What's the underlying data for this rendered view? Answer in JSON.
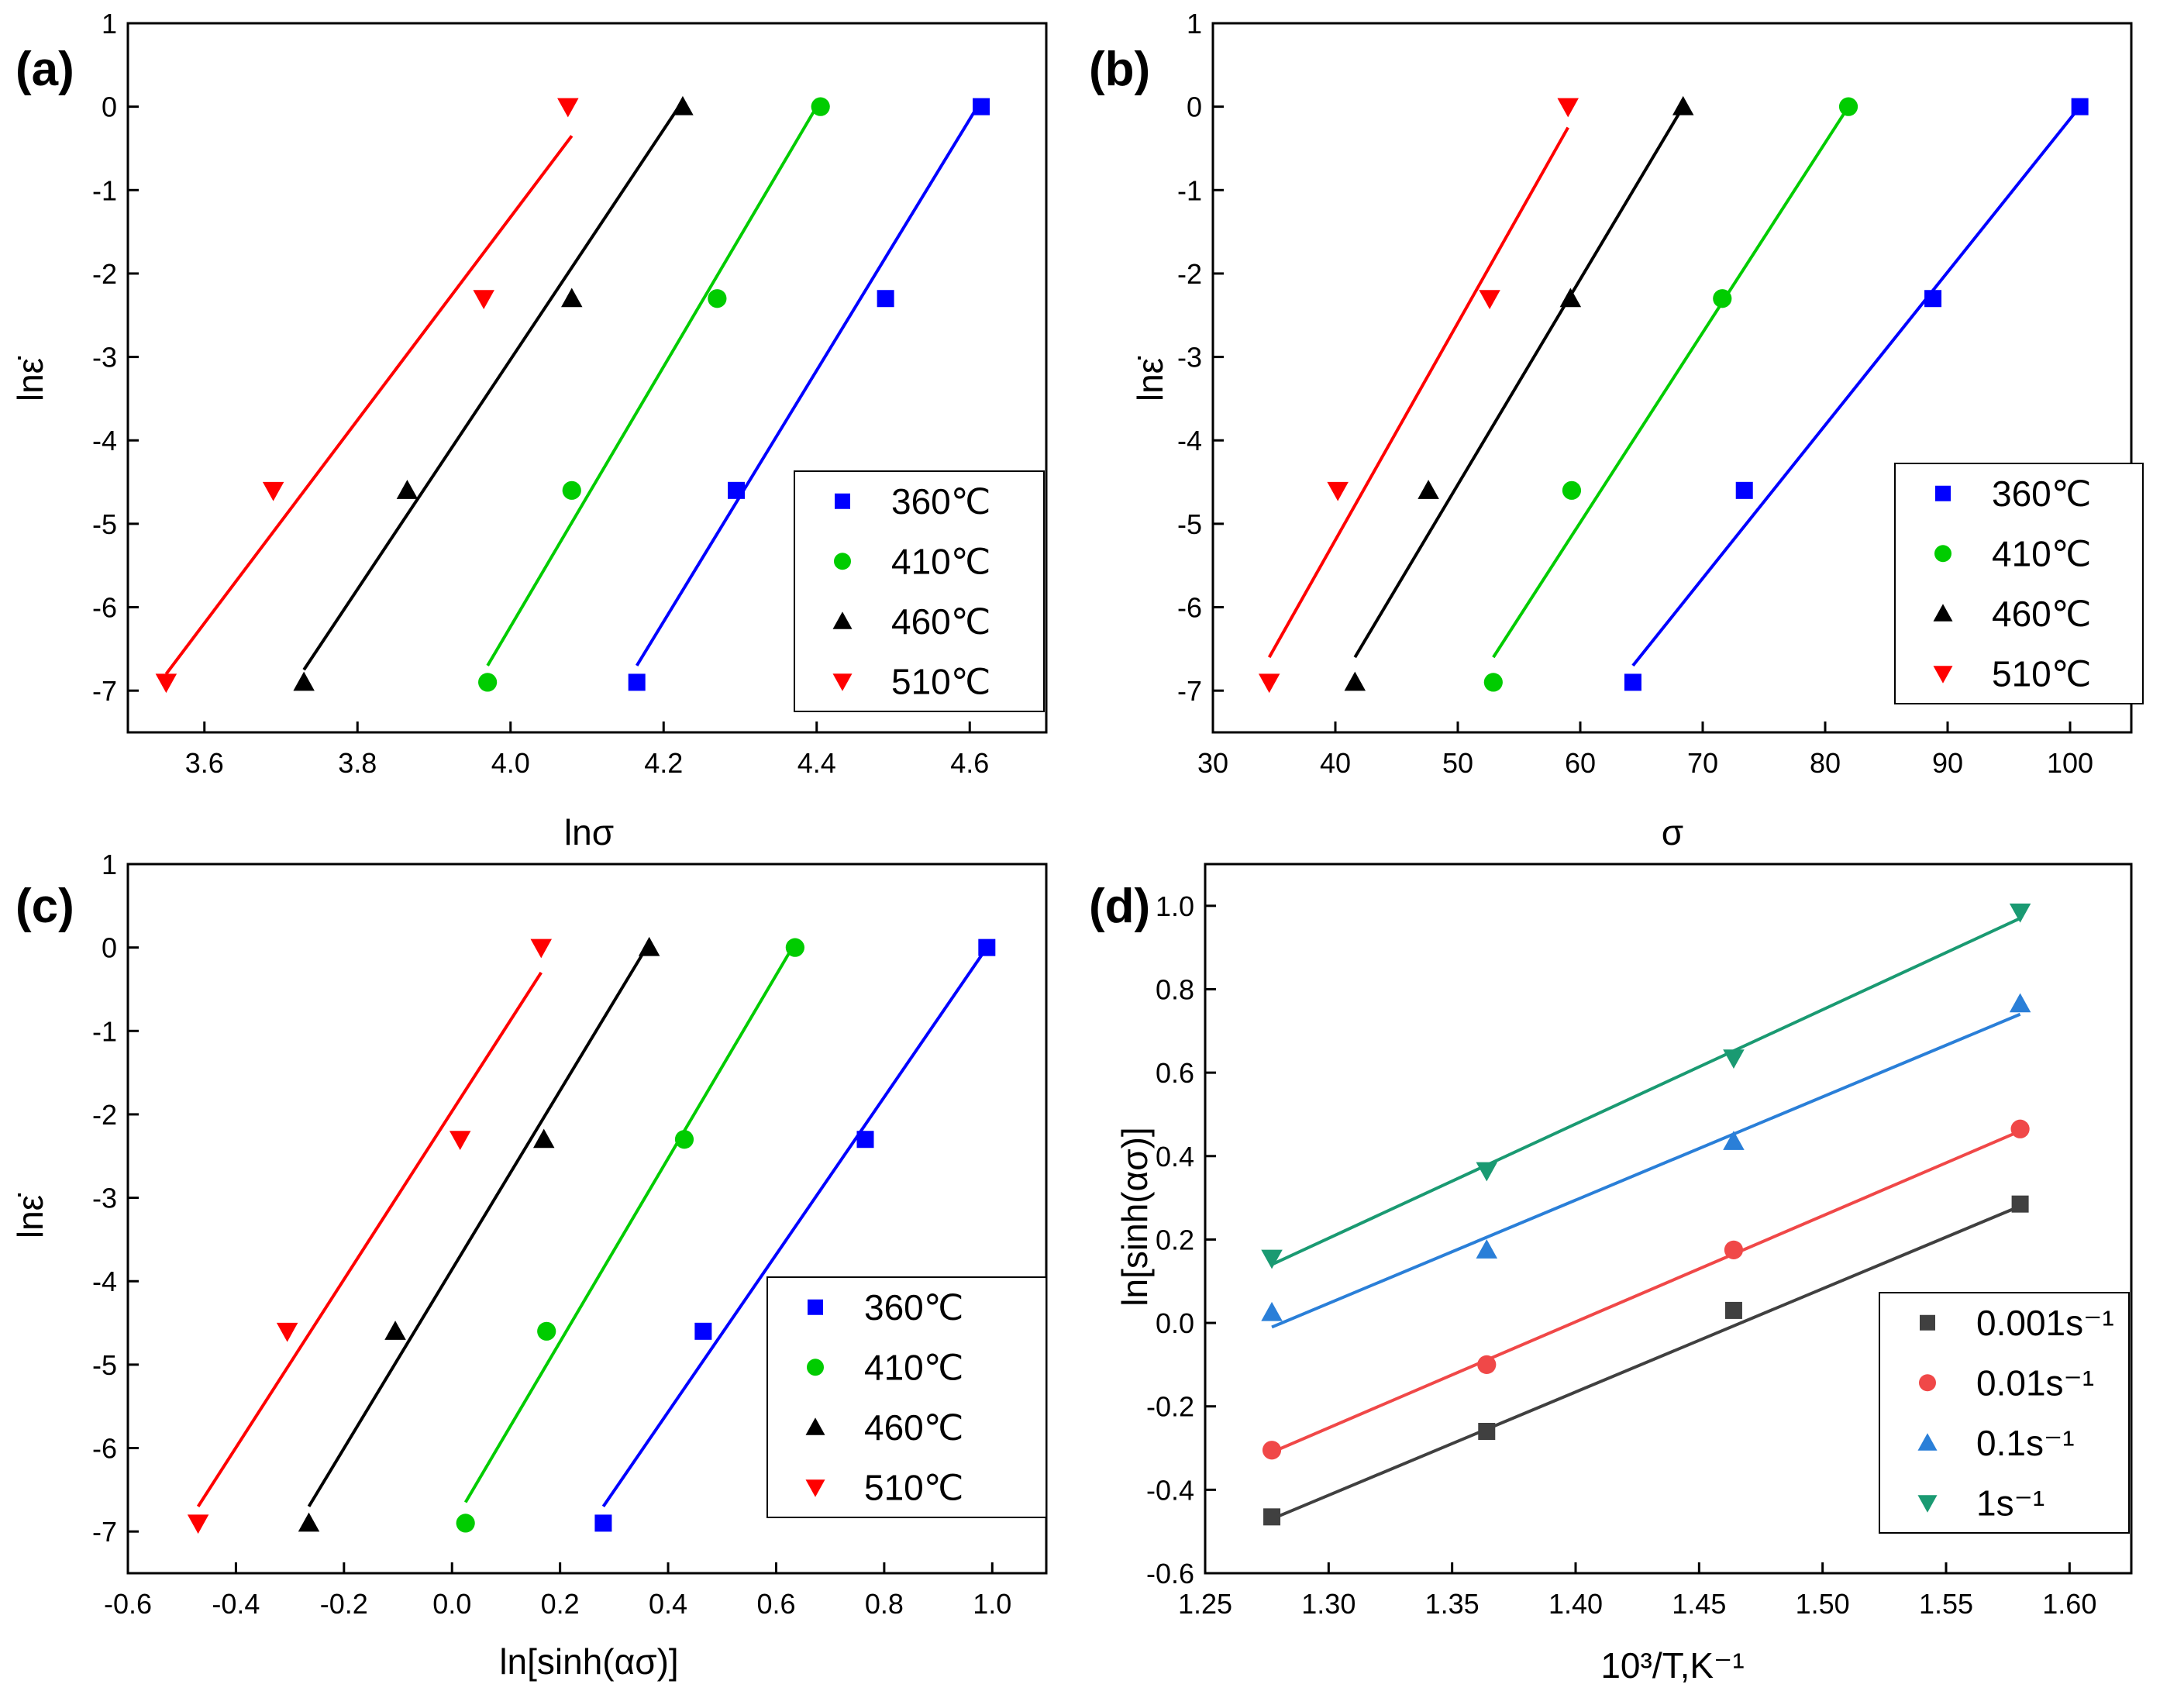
{
  "chart_data": [
    {
      "id": "a",
      "type": "scatter",
      "title": "(a)",
      "xlabel": "lnσ",
      "ylabel": "lnε̇",
      "xlim": [
        3.5,
        4.7
      ],
      "ylim": [
        -7.5,
        1
      ],
      "xticks": [
        3.6,
        3.8,
        4.0,
        4.2,
        4.4,
        4.6
      ],
      "xtick_labels": [
        "3.6",
        "3.8",
        "4.0",
        "4.2",
        "4.4",
        "4.6"
      ],
      "yticks": [
        -7,
        -6,
        -5,
        -4,
        -3,
        -2,
        -1,
        0,
        1
      ],
      "ytick_labels": [
        "-7",
        "-6",
        "-5",
        "-4",
        "-3",
        "-2",
        "-1",
        "0",
        "1"
      ],
      "legend_position": "bottom-right",
      "series": [
        {
          "name": "360℃",
          "color": "#0000ff",
          "marker": "square",
          "x": [
            4.615,
            4.49,
            4.295,
            4.165
          ],
          "y": [
            0,
            -2.3,
            -4.6,
            -6.9
          ],
          "fit_line": {
            "x": [
              4.165,
              4.61
            ],
            "y": [
              -6.7,
              0
            ]
          }
        },
        {
          "name": "410℃",
          "color": "#00cc00",
          "marker": "circle",
          "x": [
            4.405,
            4.27,
            4.08,
            3.97
          ],
          "y": [
            0,
            -2.3,
            -4.6,
            -6.9
          ],
          "fit_line": {
            "x": [
              3.97,
              4.4
            ],
            "y": [
              -6.7,
              0
            ]
          }
        },
        {
          "name": "460℃",
          "color": "#000000",
          "marker": "triangle-up",
          "x": [
            4.225,
            4.08,
            3.865,
            3.73
          ],
          "y": [
            0,
            -2.3,
            -4.6,
            -6.9
          ],
          "fit_line": {
            "x": [
              3.73,
              4.22
            ],
            "y": [
              -6.75,
              0
            ]
          }
        },
        {
          "name": "510℃",
          "color": "#ff0000",
          "marker": "triangle-down",
          "x": [
            4.075,
            3.965,
            3.69,
            3.55
          ],
          "y": [
            0,
            -2.3,
            -4.6,
            -6.9
          ],
          "fit_line": {
            "x": [
              3.55,
              4.08
            ],
            "y": [
              -6.8,
              -0.35
            ]
          }
        }
      ]
    },
    {
      "id": "b",
      "type": "scatter",
      "title": "(b)",
      "xlabel": "σ",
      "ylabel": "lnε̇",
      "xlim": [
        30,
        105
      ],
      "ylim": [
        -7.5,
        1
      ],
      "xticks": [
        30,
        40,
        50,
        60,
        70,
        80,
        90,
        100
      ],
      "xtick_labels": [
        "30",
        "40",
        "50",
        "60",
        "70",
        "80",
        "90",
        "100"
      ],
      "yticks": [
        -7,
        -6,
        -5,
        -4,
        -3,
        -2,
        -1,
        0,
        1
      ],
      "ytick_labels": [
        "-7",
        "-6",
        "-5",
        "-4",
        "-3",
        "-2",
        "-1",
        "0",
        "1"
      ],
      "legend_position": "bottom-right",
      "series": [
        {
          "name": "360℃",
          "color": "#0000ff",
          "marker": "square",
          "x": [
            100.8,
            88.8,
            73.4,
            64.3
          ],
          "y": [
            0,
            -2.3,
            -4.6,
            -6.9
          ],
          "fit_line": {
            "x": [
              64.3,
              100.8
            ],
            "y": [
              -6.7,
              0
            ]
          }
        },
        {
          "name": "410℃",
          "color": "#00cc00",
          "marker": "circle",
          "x": [
            81.9,
            71.6,
            59.3,
            52.9
          ],
          "y": [
            0,
            -2.3,
            -4.6,
            -6.9
          ],
          "fit_line": {
            "x": [
              52.9,
              81.9
            ],
            "y": [
              -6.6,
              0
            ]
          }
        },
        {
          "name": "460℃",
          "color": "#000000",
          "marker": "triangle-up",
          "x": [
            68.4,
            59.2,
            47.6,
            41.6
          ],
          "y": [
            0,
            -2.3,
            -4.6,
            -6.9
          ],
          "fit_line": {
            "x": [
              41.6,
              68.4
            ],
            "y": [
              -6.6,
              0
            ]
          }
        },
        {
          "name": "510℃",
          "color": "#ff0000",
          "marker": "triangle-down",
          "x": [
            59.0,
            52.6,
            40.2,
            34.6
          ],
          "y": [
            0,
            -2.3,
            -4.6,
            -6.9
          ],
          "fit_line": {
            "x": [
              34.6,
              59.0
            ],
            "y": [
              -6.6,
              -0.25
            ]
          }
        }
      ]
    },
    {
      "id": "c",
      "type": "scatter",
      "title": "(c)",
      "xlabel": "ln[sinh(ασ)]",
      "ylabel": "lnε̇",
      "xlim": [
        -0.6,
        1.1
      ],
      "ylim": [
        -7.5,
        1
      ],
      "xticks": [
        -0.6,
        -0.4,
        -0.2,
        0.0,
        0.2,
        0.4,
        0.6,
        0.8,
        1.0
      ],
      "xtick_labels": [
        "-0.6",
        "-0.4",
        "-0.2",
        "0.0",
        "0.2",
        "0.4",
        "0.6",
        "0.8",
        "1.0"
      ],
      "yticks": [
        -7,
        -6,
        -5,
        -4,
        -3,
        -2,
        -1,
        0,
        1
      ],
      "ytick_labels": [
        "-7",
        "-6",
        "-5",
        "-4",
        "-3",
        "-2",
        "-1",
        "0",
        "1"
      ],
      "legend_position": "bottom-right",
      "series": [
        {
          "name": "360℃",
          "color": "#0000ff",
          "marker": "square",
          "x": [
            0.99,
            0.765,
            0.465,
            0.28
          ],
          "y": [
            0,
            -2.3,
            -4.6,
            -6.9
          ],
          "fit_line": {
            "x": [
              0.28,
              0.99
            ],
            "y": [
              -6.7,
              0
            ]
          }
        },
        {
          "name": "410℃",
          "color": "#00cc00",
          "marker": "circle",
          "x": [
            0.635,
            0.43,
            0.175,
            0.025
          ],
          "y": [
            0,
            -2.3,
            -4.6,
            -6.9
          ],
          "fit_line": {
            "x": [
              0.025,
              0.63
            ],
            "y": [
              -6.65,
              0
            ]
          }
        },
        {
          "name": "460℃",
          "color": "#000000",
          "marker": "triangle-up",
          "x": [
            0.365,
            0.17,
            -0.105,
            -0.265
          ],
          "y": [
            0,
            -2.3,
            -4.6,
            -6.9
          ],
          "fit_line": {
            "x": [
              -0.265,
              0.36
            ],
            "y": [
              -6.7,
              0
            ]
          }
        },
        {
          "name": "510℃",
          "color": "#ff0000",
          "marker": "triangle-down",
          "x": [
            0.165,
            0.015,
            -0.305,
            -0.47
          ],
          "y": [
            0,
            -2.3,
            -4.6,
            -6.9
          ],
          "fit_line": {
            "x": [
              -0.47,
              0.165
            ],
            "y": [
              -6.7,
              -0.3
            ]
          }
        }
      ]
    },
    {
      "id": "d",
      "type": "scatter",
      "title": "(d)",
      "xlabel": "10³/T,K⁻¹",
      "ylabel": "ln[sinh(ασ)]",
      "xlim": [
        1.25,
        1.625
      ],
      "ylim": [
        -0.6,
        1.1
      ],
      "xticks": [
        1.25,
        1.3,
        1.35,
        1.4,
        1.45,
        1.5,
        1.55,
        1.6
      ],
      "xtick_labels": [
        "1.25",
        "1.30",
        "1.35",
        "1.40",
        "1.45",
        "1.50",
        "1.55",
        "1.60"
      ],
      "yticks": [
        -0.6,
        -0.4,
        -0.2,
        0.0,
        0.2,
        0.4,
        0.6,
        0.8,
        1.0
      ],
      "ytick_labels": [
        "-0.6",
        "-0.4",
        "-0.2",
        "0.0",
        "0.2",
        "0.4",
        "0.6",
        "0.8",
        "1.0"
      ],
      "legend_position": "bottom-right",
      "series": [
        {
          "name": "0.001s⁻¹",
          "color": "#404040",
          "marker": "square",
          "x": [
            1.277,
            1.364,
            1.464,
            1.58
          ],
          "y": [
            -0.465,
            -0.26,
            0.03,
            0.285
          ],
          "fit_line": {
            "x": [
              1.277,
              1.58
            ],
            "y": [
              -0.47,
              0.28
            ]
          }
        },
        {
          "name": "0.01s⁻¹",
          "color": "#f04848",
          "marker": "circle",
          "x": [
            1.277,
            1.364,
            1.464,
            1.58
          ],
          "y": [
            -0.305,
            -0.1,
            0.175,
            0.465
          ],
          "fit_line": {
            "x": [
              1.277,
              1.58
            ],
            "y": [
              -0.31,
              0.46
            ]
          }
        },
        {
          "name": "0.1s⁻¹",
          "color": "#2a7fd8",
          "marker": "triangle-up",
          "x": [
            1.277,
            1.364,
            1.464,
            1.58
          ],
          "y": [
            0.025,
            0.175,
            0.435,
            0.765
          ],
          "fit_line": {
            "x": [
              1.277,
              1.58
            ],
            "y": [
              -0.01,
              0.74
            ]
          }
        },
        {
          "name": "1s⁻¹",
          "color": "#1a9a72",
          "marker": "triangle-down",
          "x": [
            1.277,
            1.364,
            1.464,
            1.58
          ],
          "y": [
            0.155,
            0.365,
            0.635,
            0.985
          ],
          "fit_line": {
            "x": [
              1.277,
              1.58
            ],
            "y": [
              0.14,
              0.97
            ]
          }
        }
      ]
    }
  ]
}
